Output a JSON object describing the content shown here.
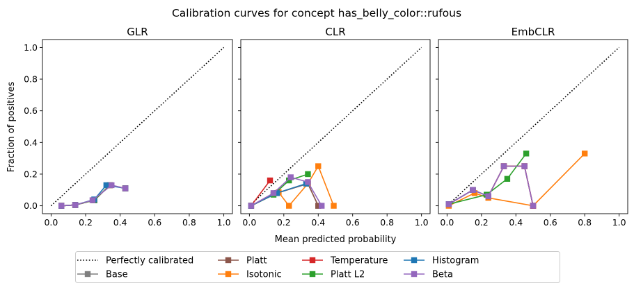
{
  "suptitle": "Calibration curves for concept has_belly_color::rufous",
  "shared_xlabel": "Mean predicted probability",
  "shared_ylabel": "Fraction of positives",
  "legend": {
    "placement": "bottom-center",
    "entries": [
      {
        "label": "Perfectly calibrated",
        "color": "#000000",
        "style": "dotted",
        "marker": "none"
      },
      {
        "label": "Base",
        "color": "#7f7f7f",
        "style": "solid",
        "marker": "square"
      },
      {
        "label": "Platt",
        "color": "#8c564b",
        "style": "solid",
        "marker": "square"
      },
      {
        "label": "Isotonic",
        "color": "#ff7f0e",
        "style": "solid",
        "marker": "square"
      },
      {
        "label": "Temperature",
        "color": "#d62728",
        "style": "solid",
        "marker": "square"
      },
      {
        "label": "Platt L2",
        "color": "#2ca02c",
        "style": "solid",
        "marker": "square"
      },
      {
        "label": "Histogram",
        "color": "#1f77b4",
        "style": "solid",
        "marker": "square"
      },
      {
        "label": "Beta",
        "color": "#9467bd",
        "style": "solid",
        "marker": "square"
      }
    ]
  },
  "chart_data": [
    {
      "type": "line",
      "title": "GLR",
      "xlabel": "",
      "ylabel": "Fraction of positives",
      "xlim": [
        -0.05,
        1.05
      ],
      "ylim": [
        -0.05,
        1.05
      ],
      "xticks": [
        "0.0",
        "0.2",
        "0.4",
        "0.6",
        "0.8",
        "1.0"
      ],
      "yticks": [
        "0.0",
        "0.2",
        "0.4",
        "0.6",
        "0.8",
        "1.0"
      ],
      "grid": false,
      "series": [
        {
          "name": "Perfectly calibrated",
          "x": [
            0,
            1
          ],
          "y": [
            0,
            1
          ]
        },
        {
          "name": "Base",
          "x": [
            0.06,
            0.14,
            0.25,
            0.34,
            0.43
          ],
          "y": [
            0.0,
            0.005,
            0.035,
            0.13,
            0.11
          ]
        },
        {
          "name": "Platt",
          "x": [
            0.06,
            0.14,
            0.25,
            0.34,
            0.43
          ],
          "y": [
            0.0,
            0.005,
            0.035,
            0.13,
            0.11
          ]
        },
        {
          "name": "Isotonic",
          "x": [
            0.06,
            0.14,
            0.25,
            0.34,
            0.43
          ],
          "y": [
            0.0,
            0.005,
            0.035,
            0.13,
            0.11
          ]
        },
        {
          "name": "Temperature",
          "x": [
            0.06,
            0.14,
            0.25,
            0.34,
            0.43
          ],
          "y": [
            0.0,
            0.005,
            0.035,
            0.13,
            0.11
          ]
        },
        {
          "name": "Platt L2",
          "x": [
            0.06,
            0.14,
            0.25,
            0.34,
            0.43
          ],
          "y": [
            0.0,
            0.005,
            0.035,
            0.13,
            0.11
          ]
        },
        {
          "name": "Histogram",
          "x": [
            0.06,
            0.14,
            0.25,
            0.32,
            0.43
          ],
          "y": [
            0.0,
            0.005,
            0.04,
            0.13,
            0.11
          ]
        },
        {
          "name": "Beta",
          "x": [
            0.06,
            0.14,
            0.24,
            0.35,
            0.43
          ],
          "y": [
            0.0,
            0.005,
            0.035,
            0.13,
            0.11
          ]
        }
      ]
    },
    {
      "type": "line",
      "title": "CLR",
      "xlabel": "Mean predicted probability",
      "ylabel": "",
      "xlim": [
        -0.05,
        1.05
      ],
      "ylim": [
        -0.05,
        1.05
      ],
      "xticks": [
        "0.0",
        "0.2",
        "0.4",
        "0.6",
        "0.8",
        "1.0"
      ],
      "yticks": [
        "",
        "",
        "",
        "",
        "",
        ""
      ],
      "grid": false,
      "series": [
        {
          "name": "Perfectly calibrated",
          "x": [
            0,
            1
          ],
          "y": [
            0,
            1
          ]
        },
        {
          "name": "Base",
          "x": [
            0.01,
            0.16,
            0.34,
            0.4
          ],
          "y": [
            0.0,
            0.08,
            0.14,
            0.0
          ]
        },
        {
          "name": "Platt",
          "x": [
            0.01,
            0.16,
            0.34,
            0.4
          ],
          "y": [
            0.0,
            0.08,
            0.14,
            0.0
          ]
        },
        {
          "name": "Isotonic",
          "x": [
            0.01,
            0.17,
            0.23,
            0.34,
            0.4,
            0.49
          ],
          "y": [
            0.0,
            0.085,
            0.0,
            0.14,
            0.25,
            0.0
          ]
        },
        {
          "name": "Temperature",
          "x": [
            0.01,
            0.12
          ],
          "y": [
            0.0,
            0.16
          ]
        },
        {
          "name": "Platt L2",
          "x": [
            0.01,
            0.14,
            0.23,
            0.34
          ],
          "y": [
            0.0,
            0.07,
            0.16,
            0.2
          ]
        },
        {
          "name": "Histogram",
          "x": [
            0.01,
            0.16,
            0.33
          ],
          "y": [
            0.0,
            0.08,
            0.14
          ]
        },
        {
          "name": "Beta",
          "x": [
            0.01,
            0.14,
            0.24,
            0.34,
            0.42
          ],
          "y": [
            0.0,
            0.08,
            0.18,
            0.15,
            0.0
          ]
        }
      ]
    },
    {
      "type": "line",
      "title": "EmbCLR",
      "xlabel": "",
      "ylabel": "",
      "xlim": [
        -0.05,
        1.05
      ],
      "ylim": [
        -0.05,
        1.05
      ],
      "xticks": [
        "0.0",
        "0.2",
        "0.4",
        "0.6",
        "0.8",
        "1.0"
      ],
      "yticks": [
        "",
        "",
        "",
        "",
        "",
        ""
      ],
      "grid": false,
      "series": [
        {
          "name": "Perfectly calibrated",
          "x": [
            0,
            1
          ],
          "y": [
            0,
            1
          ]
        },
        {
          "name": "Base",
          "x": [
            0.01,
            0.15,
            0.24,
            0.33,
            0.45,
            0.5
          ],
          "y": [
            0.01,
            0.1,
            0.06,
            0.25,
            0.25,
            0.0
          ]
        },
        {
          "name": "Platt",
          "x": [
            0.01,
            0.15,
            0.24,
            0.33,
            0.45,
            0.5
          ],
          "y": [
            0.01,
            0.1,
            0.06,
            0.25,
            0.25,
            0.0
          ]
        },
        {
          "name": "Isotonic",
          "x": [
            0.01,
            0.16,
            0.24,
            0.5,
            0.8
          ],
          "y": [
            0.0,
            0.08,
            0.05,
            0.0,
            0.33
          ]
        },
        {
          "name": "Temperature",
          "x": [
            0.01,
            0.15,
            0.24,
            0.33,
            0.45,
            0.5
          ],
          "y": [
            0.01,
            0.1,
            0.06,
            0.25,
            0.25,
            0.0
          ]
        },
        {
          "name": "Platt L2",
          "x": [
            0.01,
            0.23,
            0.35,
            0.46
          ],
          "y": [
            0.01,
            0.07,
            0.17,
            0.33
          ]
        },
        {
          "name": "Histogram",
          "x": [
            0.01,
            0.15,
            0.24
          ],
          "y": [
            0.01,
            0.1,
            0.06
          ]
        },
        {
          "name": "Beta",
          "x": [
            0.01,
            0.15,
            0.24,
            0.33,
            0.45,
            0.5
          ],
          "y": [
            0.01,
            0.1,
            0.06,
            0.25,
            0.25,
            0.0
          ]
        }
      ]
    }
  ]
}
